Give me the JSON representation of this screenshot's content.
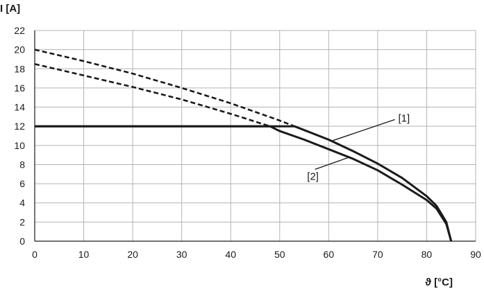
{
  "chart_data": {
    "type": "line",
    "title": "",
    "xlabel": "ϑ [°C]",
    "ylabel": "I [A]",
    "xlim": [
      0,
      90
    ],
    "ylim": [
      0,
      22
    ],
    "xticks": [
      0,
      10,
      20,
      30,
      40,
      50,
      60,
      70,
      80,
      90
    ],
    "yticks": [
      0,
      2,
      4,
      6,
      8,
      10,
      12,
      14,
      16,
      18,
      20,
      22
    ],
    "grid": true,
    "legend": "none",
    "colors": {
      "line": "#1a1a1a",
      "grid": "#b3b3b3",
      "axis": "#1a1a1a"
    },
    "series": [
      {
        "style": "solid",
        "points": [
          [
            0,
            12
          ],
          [
            53,
            12
          ],
          [
            55,
            11.6
          ],
          [
            60,
            10.6
          ],
          [
            65,
            9.4
          ],
          [
            70,
            8.1
          ],
          [
            75,
            6.6
          ],
          [
            80,
            4.7
          ],
          [
            82,
            3.7
          ],
          [
            84,
            2.0
          ],
          [
            85,
            0
          ]
        ]
      },
      {
        "style": "solid",
        "points": [
          [
            0,
            12
          ],
          [
            48,
            12
          ],
          [
            50,
            11.5
          ],
          [
            55,
            10.6
          ],
          [
            60,
            9.6
          ],
          [
            65,
            8.6
          ],
          [
            70,
            7.4
          ],
          [
            75,
            5.9
          ],
          [
            80,
            4.3
          ],
          [
            82,
            3.4
          ],
          [
            84,
            1.8
          ],
          [
            85,
            0
          ]
        ]
      },
      {
        "style": "dashed",
        "points": [
          [
            0,
            20
          ],
          [
            10,
            18.8
          ],
          [
            20,
            17.5
          ],
          [
            30,
            16.0
          ],
          [
            40,
            14.4
          ],
          [
            50,
            12.6
          ],
          [
            53,
            12.0
          ]
        ]
      },
      {
        "style": "dashed",
        "points": [
          [
            0,
            18.5
          ],
          [
            10,
            17.3
          ],
          [
            20,
            16.1
          ],
          [
            30,
            14.8
          ],
          [
            40,
            13.3
          ],
          [
            48,
            12.0
          ]
        ]
      }
    ],
    "annotations": [
      {
        "label": "[1]",
        "text_at": [
          74.2,
          12.5
        ],
        "line": [
          [
            73.5,
            12.7
          ],
          [
            60.8,
            10.5
          ]
        ]
      },
      {
        "label": "[2]",
        "text_at": [
          55.6,
          6.4
        ],
        "line": [
          [
            57.2,
            7.5
          ],
          [
            64.4,
            8.8
          ]
        ]
      }
    ]
  }
}
